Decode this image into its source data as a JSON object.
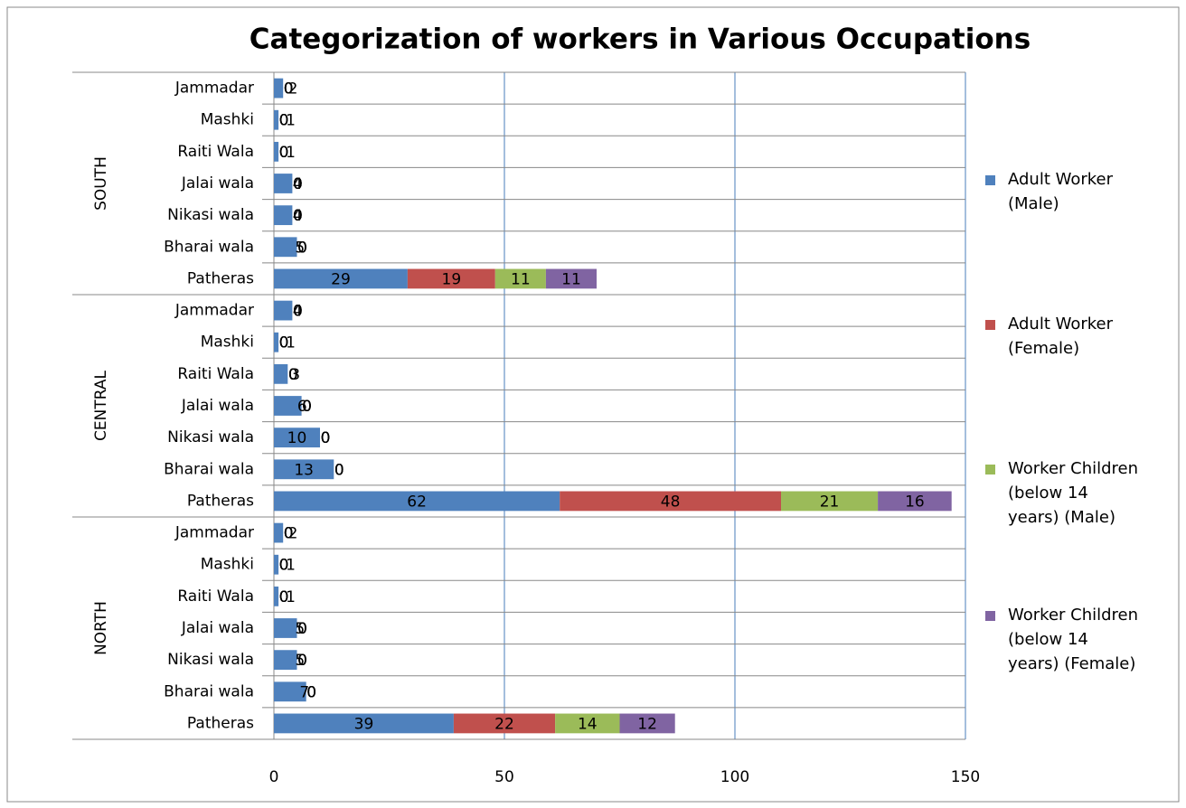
{
  "chart_data": {
    "type": "stacked_bar_horizontal",
    "title": "Categorization of workers in Various Occupations",
    "groups": [
      {
        "name": "SOUTH",
        "categories": [
          "Jammadar",
          "Mashki",
          "Raiti Wala",
          "Jalai wala",
          "Nikasi wala",
          "Bharai wala",
          "Patheras"
        ]
      },
      {
        "name": "CENTRAL",
        "categories": [
          "Jammadar",
          "Mashki",
          "Raiti Wala",
          "Jalai wala",
          "Nikasi wala",
          "Bharai wala",
          "Patheras"
        ]
      },
      {
        "name": "NORTH",
        "categories": [
          "Jammadar",
          "Mashki",
          "Raiti Wala",
          "Jalai wala",
          "Nikasi wala",
          "Bharai wala",
          "Patheras"
        ]
      }
    ],
    "series": [
      {
        "name": "Adult Worker (Male)",
        "color": "#4f81bd",
        "values": [
          2,
          1,
          1,
          4,
          4,
          5,
          29,
          4,
          1,
          3,
          6,
          10,
          13,
          62,
          2,
          1,
          1,
          5,
          5,
          7,
          39
        ]
      },
      {
        "name": "Adult Worker (Female)",
        "color": "#c0504d",
        "values": [
          0,
          0,
          0,
          0,
          0,
          0,
          19,
          0,
          0,
          0,
          0,
          0,
          0,
          48,
          0,
          0,
          0,
          0,
          0,
          0,
          22
        ]
      },
      {
        "name": "Worker Children (below 14 years) (Male)",
        "color": "#9bbb59",
        "values": [
          0,
          0,
          0,
          0,
          0,
          0,
          11,
          0,
          0,
          0,
          0,
          0,
          0,
          21,
          0,
          0,
          0,
          0,
          0,
          0,
          14
        ]
      },
      {
        "name": "Worker Children (below 14 years) (Female)",
        "color": "#8064a2",
        "values": [
          0,
          0,
          0,
          0,
          0,
          0,
          11,
          0,
          0,
          0,
          0,
          0,
          0,
          16,
          0,
          0,
          0,
          0,
          0,
          0,
          12
        ]
      }
    ],
    "xlim": [
      0,
      150
    ],
    "xticks": [
      0,
      50,
      100,
      150
    ],
    "grid": true,
    "legend": "right"
  }
}
